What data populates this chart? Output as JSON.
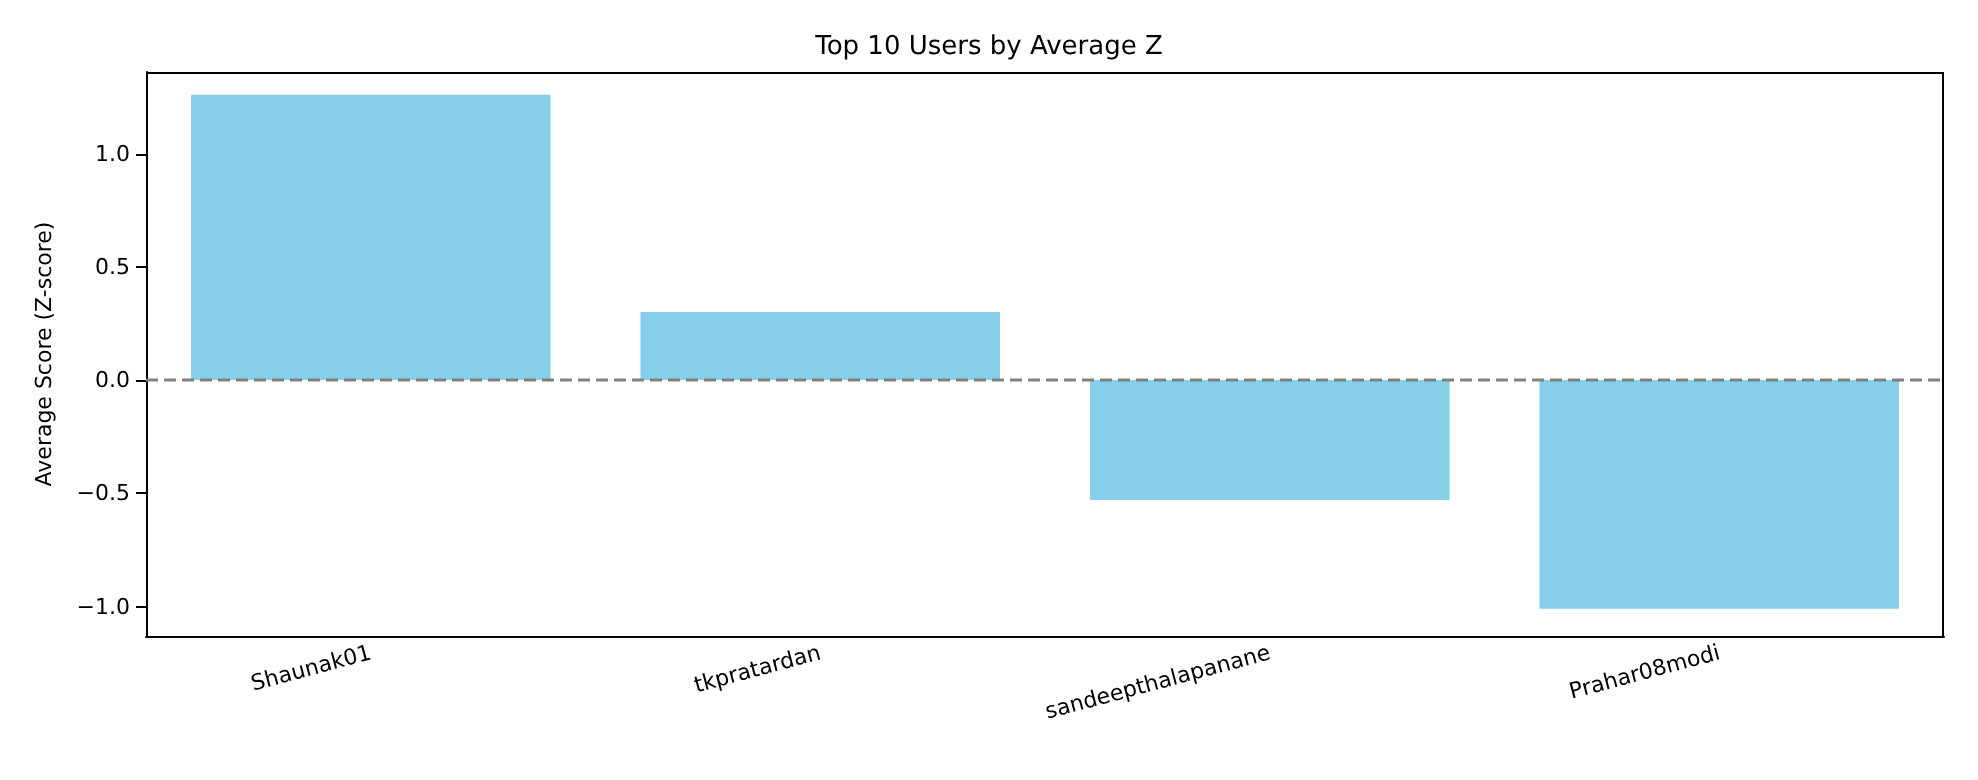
{
  "chart_data": {
    "type": "bar",
    "title": "Top 10 Users by Average Z",
    "ylabel": "Average Score (Z-score)",
    "categories": [
      "Shaunak01",
      "tkpratardan",
      "sandeepthalapanane",
      "Prahar08modi"
    ],
    "values": [
      1.26,
      0.3,
      -0.53,
      -1.01
    ],
    "color": "#87ceeb",
    "ylim": [
      -1.13,
      1.36
    ],
    "yticks": [
      {
        "value": -1,
        "label": "−1.0"
      },
      {
        "value": -0.5,
        "label": "−0.5"
      },
      {
        "value": 0,
        "label": "0.0"
      },
      {
        "value": 0.5,
        "label": "0.5"
      },
      {
        "value": 1,
        "label": "1.0"
      }
    ],
    "grid": false,
    "ref_lines": [
      {
        "axis": "y",
        "value": 0,
        "color": "#808080",
        "line_style": "dashed"
      }
    ]
  }
}
